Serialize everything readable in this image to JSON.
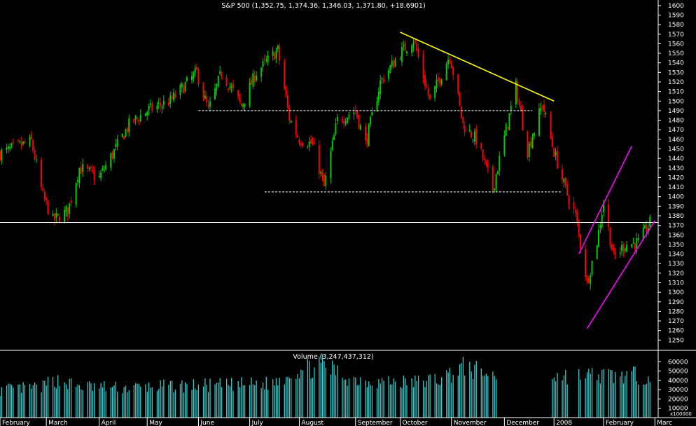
{
  "chart_data": [
    {
      "type": "candlestick",
      "title": "S&P 500 (1,352.75, 1,374.36, 1,346.03, 1,371.80, +18.6901)",
      "ylim": [
        1240,
        1605
      ],
      "yticks": [
        1250,
        1260,
        1270,
        1280,
        1290,
        1300,
        1310,
        1320,
        1330,
        1340,
        1350,
        1360,
        1370,
        1380,
        1390,
        1400,
        1410,
        1420,
        1430,
        1440,
        1450,
        1460,
        1470,
        1480,
        1490,
        1500,
        1510,
        1520,
        1530,
        1540,
        1550,
        1560,
        1570,
        1580,
        1590,
        1600
      ],
      "x_start": "2007-02-01",
      "x_end": "2008-03-05",
      "xticks": [
        {
          "date": "2007-02-01",
          "label": "February"
        },
        {
          "date": "2007-03-01",
          "label": "March"
        },
        {
          "date": "2007-04-02",
          "label": "April"
        },
        {
          "date": "2007-05-01",
          "label": "May"
        },
        {
          "date": "2007-06-01",
          "label": "June"
        },
        {
          "date": "2007-07-02",
          "label": "July"
        },
        {
          "date": "2007-08-01",
          "label": "August"
        },
        {
          "date": "2007-09-04",
          "label": "September"
        },
        {
          "date": "2007-10-01",
          "label": "October"
        },
        {
          "date": "2007-11-01",
          "label": "November"
        },
        {
          "date": "2007-12-03",
          "label": "December"
        },
        {
          "date": "2008-01-02",
          "label": "2008"
        },
        {
          "date": "2008-02-01",
          "label": "February"
        },
        {
          "date": "2008-03-03",
          "label": "Marc"
        }
      ],
      "up_color": "#00cc00",
      "down_color": "#ff0000",
      "closes": [
        {
          "date": "2007-02-01",
          "close": 1445
        },
        {
          "date": "2007-02-20",
          "close": 1458
        },
        {
          "date": "2007-02-27",
          "close": 1400
        },
        {
          "date": "2007-03-05",
          "close": 1375
        },
        {
          "date": "2007-03-14",
          "close": 1385
        },
        {
          "date": "2007-03-21",
          "close": 1430
        },
        {
          "date": "2007-04-02",
          "close": 1420
        },
        {
          "date": "2007-04-20",
          "close": 1475
        },
        {
          "date": "2007-05-01",
          "close": 1490
        },
        {
          "date": "2007-05-15",
          "close": 1500
        },
        {
          "date": "2007-05-31",
          "close": 1530
        },
        {
          "date": "2007-06-07",
          "close": 1490
        },
        {
          "date": "2007-06-15",
          "close": 1530
        },
        {
          "date": "2007-06-27",
          "close": 1495
        },
        {
          "date": "2007-07-06",
          "close": 1530
        },
        {
          "date": "2007-07-19",
          "close": 1553
        },
        {
          "date": "2007-07-26",
          "close": 1482
        },
        {
          "date": "2007-08-01",
          "close": 1460
        },
        {
          "date": "2007-08-09",
          "close": 1455
        },
        {
          "date": "2007-08-16",
          "close": 1410
        },
        {
          "date": "2007-08-24",
          "close": 1480
        },
        {
          "date": "2007-09-04",
          "close": 1490
        },
        {
          "date": "2007-09-10",
          "close": 1455
        },
        {
          "date": "2007-09-19",
          "close": 1520
        },
        {
          "date": "2007-10-01",
          "close": 1550
        },
        {
          "date": "2007-10-09",
          "close": 1565
        },
        {
          "date": "2007-10-19",
          "close": 1500
        },
        {
          "date": "2007-10-31",
          "close": 1549
        },
        {
          "date": "2007-11-08",
          "close": 1475
        },
        {
          "date": "2007-11-16",
          "close": 1460
        },
        {
          "date": "2007-11-26",
          "close": 1408
        },
        {
          "date": "2007-12-06",
          "close": 1485
        },
        {
          "date": "2007-12-10",
          "close": 1515
        },
        {
          "date": "2007-12-17",
          "close": 1448
        },
        {
          "date": "2007-12-26",
          "close": 1497
        },
        {
          "date": "2008-01-02",
          "close": 1447
        },
        {
          "date": "2008-01-09",
          "close": 1407
        },
        {
          "date": "2008-01-15",
          "close": 1380
        },
        {
          "date": "2008-01-22",
          "close": 1310
        },
        {
          "date": "2008-01-28",
          "close": 1353
        },
        {
          "date": "2008-02-01",
          "close": 1395
        },
        {
          "date": "2008-02-07",
          "close": 1336
        },
        {
          "date": "2008-02-14",
          "close": 1350
        },
        {
          "date": "2008-02-22",
          "close": 1352
        },
        {
          "date": "2008-02-29",
          "close": 1372
        }
      ],
      "horizontal_lines": [
        {
          "value": 1373,
          "style": "solid",
          "color": "#ffffff"
        },
        {
          "value": 1490,
          "style": "dashed",
          "color": "#ffffff",
          "from": "2007-06-01",
          "to": "2007-12-20"
        },
        {
          "value": 1405,
          "style": "dashed",
          "color": "#ffffff",
          "from": "2007-07-11",
          "to": "2008-01-07"
        }
      ],
      "trend_lines": [
        {
          "color": "#ffff00",
          "from": {
            "date": "2007-10-01",
            "value": 1572
          },
          "to": {
            "date": "2008-01-02",
            "value": 1500
          }
        },
        {
          "color": "#ff00ff",
          "from": {
            "date": "2008-01-17",
            "value": 1340
          },
          "to": {
            "date": "2008-02-18",
            "value": 1453
          }
        },
        {
          "color": "#ff00ff",
          "from": {
            "date": "2008-01-22",
            "value": 1262
          },
          "to": {
            "date": "2008-03-03",
            "value": 1375
          }
        }
      ]
    },
    {
      "type": "bar",
      "title": "Volume (3,247,437,312)",
      "ylim": [
        0,
        70000
      ],
      "yticks": [
        10000,
        20000,
        30000,
        40000,
        50000,
        60000
      ],
      "y_unit": "x100000",
      "bar_color": "#33cccc",
      "volume_levels": [
        {
          "date": "2007-02-01",
          "value": 29000
        },
        {
          "date": "2007-02-27",
          "value": 32000
        },
        {
          "date": "2007-03-05",
          "value": 40000
        },
        {
          "date": "2007-03-20",
          "value": 33000
        },
        {
          "date": "2007-04-16",
          "value": 31000
        },
        {
          "date": "2007-05-15",
          "value": 33000
        },
        {
          "date": "2007-06-15",
          "value": 34000
        },
        {
          "date": "2007-07-16",
          "value": 36000
        },
        {
          "date": "2007-07-26",
          "value": 47000
        },
        {
          "date": "2007-08-16",
          "value": 55000
        },
        {
          "date": "2007-08-31",
          "value": 41000
        },
        {
          "date": "2007-09-17",
          "value": 38000
        },
        {
          "date": "2007-10-09",
          "value": 37000
        },
        {
          "date": "2007-10-26",
          "value": 41000
        },
        {
          "date": "2007-11-08",
          "value": 53000
        },
        {
          "date": "2007-11-26",
          "value": 44000
        }
      ],
      "volume_gaps": [
        {
          "from": "2007-11-29",
          "to": "2007-12-31"
        },
        {
          "from": "2008-01-11",
          "to": "2008-01-16"
        }
      ]
    }
  ]
}
